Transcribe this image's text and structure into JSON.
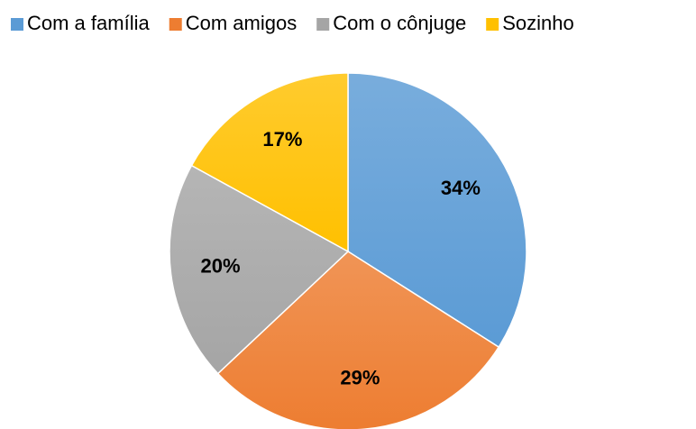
{
  "chart_data": {
    "type": "pie",
    "series": [
      {
        "name": "Com a família",
        "color": "#5b9bd5"
      },
      {
        "name": "Com amigos",
        "color": "#ed7d31"
      },
      {
        "name": "Com o cônjuge",
        "color": "#a5a5a5"
      },
      {
        "name": "Sozinho",
        "color": "#ffc000"
      }
    ],
    "categories": [
      "Com a família",
      "Com amigos",
      "Com o cônjuge",
      "Sozinho"
    ],
    "values": [
      34,
      29,
      20,
      17
    ],
    "value_labels": [
      "34%",
      "29%",
      "20%",
      "17%"
    ],
    "legend": "top"
  }
}
